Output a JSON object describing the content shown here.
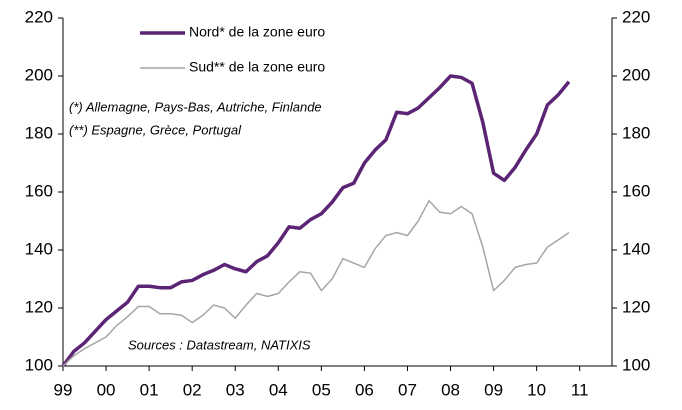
{
  "chart_data": {
    "type": "line",
    "x": [
      1999,
      1999.25,
      1999.5,
      1999.75,
      2000,
      2000.25,
      2000.5,
      2000.75,
      2001,
      2001.25,
      2001.5,
      2001.75,
      2002,
      2002.25,
      2002.5,
      2002.75,
      2003,
      2003.25,
      2003.5,
      2003.75,
      2004,
      2004.25,
      2004.5,
      2004.75,
      2005,
      2005.25,
      2005.5,
      2005.75,
      2006,
      2006.25,
      2006.5,
      2006.75,
      2007,
      2007.25,
      2007.5,
      2007.75,
      2008,
      2008.25,
      2008.5,
      2008.75,
      2009,
      2009.25,
      2009.5,
      2009.75,
      2010,
      2010.25,
      2010.5,
      2010.75
    ],
    "series": [
      {
        "name": "Nord* de la zone euro",
        "color": "#5c2474",
        "width": 3.5,
        "values": [
          100,
          105,
          108,
          112,
          116,
          119,
          122,
          127.5,
          127.5,
          127,
          127,
          129,
          129.5,
          131.5,
          133,
          135,
          133.5,
          132.5,
          136,
          138,
          142.5,
          148,
          147.5,
          150.5,
          152.5,
          156.5,
          161.5,
          163,
          170,
          174.5,
          178,
          187.5,
          187,
          189,
          192.5,
          196,
          200,
          199.5,
          197.5,
          184,
          166.5,
          164,
          168.5,
          174.5,
          180,
          190,
          193.5,
          198
        ]
      },
      {
        "name": "Sud** de la zone euro",
        "color": "#a6a6a6",
        "width": 1.5,
        "values": [
          100,
          103.5,
          106,
          108,
          110,
          114,
          117,
          120.5,
          120.5,
          118,
          118,
          117.5,
          115,
          117.5,
          121,
          120,
          116.5,
          121,
          125,
          124,
          125,
          129,
          132.5,
          132,
          126,
          130,
          137,
          135.5,
          134,
          140.5,
          145,
          146,
          145,
          150,
          157,
          153,
          152.5,
          155,
          152.5,
          141,
          126,
          129.5,
          134,
          135,
          135.5,
          141,
          143.5,
          146
        ]
      }
    ],
    "annotations": [
      "(*) Allemagne, Pays-Bas, Autriche, Finlande",
      "(**) Espagne, Grèce, Portugal",
      "Sources : Datastream, NATIXIS"
    ],
    "xlim": [
      1999,
      2011.75
    ],
    "xticks": [
      {
        "value": 1999,
        "label": "99"
      },
      {
        "value": 2000,
        "label": "00"
      },
      {
        "value": 2001,
        "label": "01"
      },
      {
        "value": 2002,
        "label": "02"
      },
      {
        "value": 2003,
        "label": "03"
      },
      {
        "value": 2004,
        "label": "04"
      },
      {
        "value": 2005,
        "label": "05"
      },
      {
        "value": 2006,
        "label": "06"
      },
      {
        "value": 2007,
        "label": "07"
      },
      {
        "value": 2008,
        "label": "08"
      },
      {
        "value": 2009,
        "label": "09"
      },
      {
        "value": 2010,
        "label": "10"
      },
      {
        "value": 2011,
        "label": "11"
      }
    ],
    "ylim": [
      100,
      220
    ],
    "yticks": [
      100,
      120,
      140,
      160,
      180,
      200,
      220
    ],
    "y2lim": [
      100,
      220
    ],
    "y2ticks": [
      100,
      120,
      140,
      160,
      180,
      200,
      220
    ]
  }
}
